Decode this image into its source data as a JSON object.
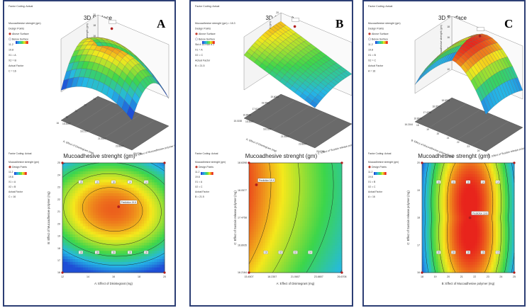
{
  "accent": "#2c3e74",
  "colors": {
    "low": "#1f4fd6",
    "mid1": "#25b8e6",
    "mid2": "#3cd64b",
    "mid3": "#f5e81c",
    "high": "#e8241c"
  },
  "panels": [
    {
      "letter": "A",
      "coding": "Factor Coding: Actual",
      "surface_title": "3D Surface",
      "surface_info": [
        "Mucoadhesive strenght (gm)",
        "Design Points",
        "Above Surface",
        "Below Surface",
        "11.2",
        "19.8",
        "X1 = A",
        "X2 = B",
        "Actual Factor",
        "C = 16"
      ],
      "surface_axes": {
        "z": "Mucoadhesive strenght (gm)",
        "x": "A: Effect of Disintegrant (mg)",
        "y": "B: Effect of Mucoadhesive polymer (mg)"
      },
      "z_ticks": [
        "20",
        "18",
        "16",
        "14",
        "12",
        "10"
      ],
      "x_ticks": [
        "15.4507",
        "18.2357",
        "21.0607",
        "23.8807",
        "26.6706"
      ],
      "y_ticks": [
        "16",
        "18",
        "20",
        "22",
        "24"
      ],
      "contour_title": "Mucoadhesive strenght (gm)",
      "contour_info": [
        "Factor Coding: Actual",
        "Mucoadhesive strenght (gm)",
        "Design Points",
        "11.2",
        "19.8",
        "X1 = A",
        "X2 = B",
        "Actual Factor",
        "C = 16"
      ],
      "contour_xlabel": "A: Effect of Disintegrant (mg)",
      "contour_ylabel": "B: Effect of Mucoadhesive polymer (mg)",
      "contour_xticks": [
        "12",
        "14",
        "16",
        "18",
        "20"
      ],
      "contour_yticks": [
        "16",
        "17",
        "18",
        "19",
        "20",
        "21",
        "22",
        "23",
        "24",
        "25"
      ],
      "contour_labels": [
        "16",
        "18",
        "16",
        "18",
        "18",
        "16",
        "16",
        "18",
        "14",
        "14"
      ],
      "prediction_label": "Prediction 19.8"
    },
    {
      "letter": "B",
      "coding": "Factor Coding: Actual",
      "surface_title": "3D Surface",
      "surface_info": [
        "Mucoadhesive strenght (gm) = 18.3",
        "Design Points",
        "Above Surface",
        "Below Surface",
        "Std # 15 Run # 2",
        "X1 = A",
        "X2 = C",
        "Actual Factor",
        "B = 21.5"
      ],
      "surface_axes": {
        "z": "Mucoadhesive strenght (gm)",
        "x": "A: Effect of Disintegrant (mg)",
        "y": "C: Effect of Sustain release polymer (mg)"
      },
      "z_ticks": [
        "20",
        "18",
        "16",
        "14",
        "12"
      ],
      "x_ticks": [
        "15.4507",
        "18.2357",
        "21.0607",
        "23.8807",
        "26.6706"
      ],
      "y_ticks": [
        "15.0158",
        "16.8935",
        "17.6745",
        "18.9511",
        "19.6088"
      ],
      "contour_title": "Mucoadhesive strenght (gm)",
      "contour_info": [
        "Factor Coding: Actual",
        "Mucoadhesive strenght (gm)",
        "Design Points",
        "11.2",
        "19.8",
        "X1 = A",
        "X2 = C",
        "Actual Factor",
        "B = 21.5"
      ],
      "contour_xlabel": "A: Effect of Disintegrant (mg)",
      "contour_ylabel": "C: Effect of Sustain release polymer (mg)",
      "contour_xticks": [
        "15.4507",
        "18.2357",
        "21.0607",
        "23.8807",
        "26.6706"
      ],
      "contour_yticks": [
        "16.2164",
        "16.8935",
        "17.4758",
        "18.0577",
        "18.6398"
      ],
      "contour_labels": [
        "18",
        "16",
        "16",
        "14"
      ],
      "prediction_label": "Prediction 18.3"
    },
    {
      "letter": "C",
      "coding": "Factor Coding: Actual",
      "surface_title": "3D Surface",
      "surface_info": [
        "Mucoadhesive strenght (gm)",
        "Design Points",
        "Above Surface",
        "Below Surface",
        "11.2",
        "19.8",
        "X1 = B",
        "X2 = C",
        "Actual Factor",
        "A = 16"
      ],
      "surface_axes": {
        "z": "Mucoadhesive strenght (gm)",
        "x": "B: Effect of Mucoadhesive polymer (mg)",
        "y": "C: Effect of Sustain release polymer (mg)"
      },
      "z_ticks": [
        "20",
        "18",
        "16",
        "14",
        "12",
        "10"
      ],
      "x_ticks": [
        "18",
        "19",
        "20",
        "21",
        "22",
        "23",
        "24",
        "25"
      ],
      "y_ticks": [
        "16.2164",
        "16.8935",
        "17.4758",
        "18.0577",
        "18.6398"
      ],
      "contour_title": "Mucoadhesive strenght (gm)",
      "contour_info": [
        "Factor Coding: Actual",
        "Mucoadhesive strenght (gm)",
        "Design Points",
        "11.2",
        "19.8",
        "X1 = B",
        "X2 = C",
        "Actual Factor",
        "A = 16"
      ],
      "contour_xlabel": "B: Effect of Mucoadhesive polymer (mg)",
      "contour_ylabel": "C: Effect of Sustain release polymer (mg)",
      "contour_xticks": [
        "18",
        "19",
        "20",
        "21",
        "22",
        "23",
        "24",
        "25"
      ],
      "contour_yticks": [
        "16",
        "17",
        "18",
        "19",
        "20"
      ],
      "contour_labels": [
        "16",
        "18",
        "18",
        "16",
        "16",
        "18",
        "18",
        "16",
        "14",
        "14"
      ],
      "prediction_label": "Prediction 19.8"
    }
  ],
  "chart_data": [
    {
      "type": "heatmap",
      "panel": "A",
      "title": "Mucoadhesive strenght (gm)",
      "xlabel": "A: Effect of Disintegrant (mg)",
      "ylabel": "B: Effect of Mucoadhesive polymer (mg)",
      "xlim": [
        12,
        20
      ],
      "ylim": [
        16,
        25
      ],
      "peak": [
        16,
        21.5
      ],
      "peak_value": 19.8,
      "zlim": [
        11.2,
        19.8
      ]
    },
    {
      "type": "heatmap",
      "panel": "B",
      "title": "Mucoadhesive strenght (gm)",
      "xlabel": "A: Effect of Disintegrant (mg)",
      "ylabel": "C: Effect of Sustain release polymer (mg)",
      "xlim": [
        15.4507,
        26.6706
      ],
      "ylim": [
        16.2164,
        18.6398
      ],
      "peak": [
        16,
        18.2
      ],
      "peak_value": 18.3,
      "zlim": [
        11.2,
        19.8
      ]
    },
    {
      "type": "heatmap",
      "panel": "C",
      "title": "Mucoadhesive strenght (gm)",
      "xlabel": "B: Effect of Mucoadhesive polymer (mg)",
      "ylabel": "C: Effect of Sustain release polymer (mg)",
      "xlim": [
        18,
        25
      ],
      "ylim": [
        16,
        20
      ],
      "peak": [
        21.5,
        18
      ],
      "peak_value": 19.8,
      "zlim": [
        11.2,
        19.8
      ]
    }
  ]
}
